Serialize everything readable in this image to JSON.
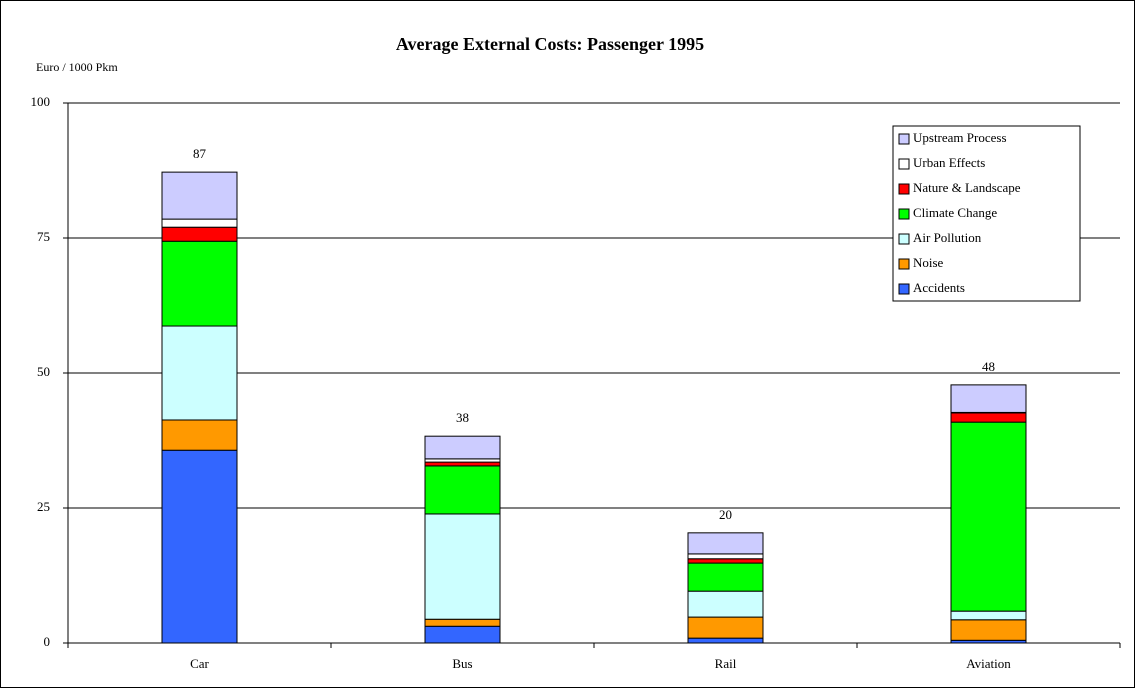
{
  "chart_data": {
    "type": "stacked_bar",
    "title": "Average External Costs: Passenger  1995",
    "y_label": "Euro / 1000 Pkm",
    "categories": [
      "Car",
      "Bus",
      "Rail",
      "Aviation"
    ],
    "series": [
      {
        "name": "Accidents",
        "color": "#3366ff",
        "values": [
          35.7,
          3.1,
          0.9,
          0.5
        ]
      },
      {
        "name": "Noise",
        "color": "#ff9900",
        "values": [
          5.6,
          1.3,
          3.9,
          3.8
        ]
      },
      {
        "name": "Air Pollution",
        "color": "#ccffff",
        "values": [
          17.4,
          19.5,
          4.8,
          1.6
        ]
      },
      {
        "name": "Climate Change",
        "color": "#00ff00",
        "values": [
          15.7,
          8.9,
          5.2,
          35.0
        ]
      },
      {
        "name": "Nature & Landscape",
        "color": "#ff0000",
        "values": [
          2.6,
          0.7,
          0.8,
          1.7
        ]
      },
      {
        "name": "Urban Effects",
        "color": "#ffffff",
        "values": [
          1.5,
          0.6,
          0.9,
          0.1
        ]
      },
      {
        "name": "Upstream Process",
        "color": "#ccccff",
        "values": [
          8.7,
          4.2,
          3.9,
          5.1
        ]
      }
    ],
    "total_labels": [
      "87",
      "38",
      "20",
      "48"
    ],
    "ylim": [
      0,
      100
    ],
    "yticks": [
      0,
      25,
      50,
      75,
      100
    ],
    "grid": true,
    "legend": "top-right"
  }
}
